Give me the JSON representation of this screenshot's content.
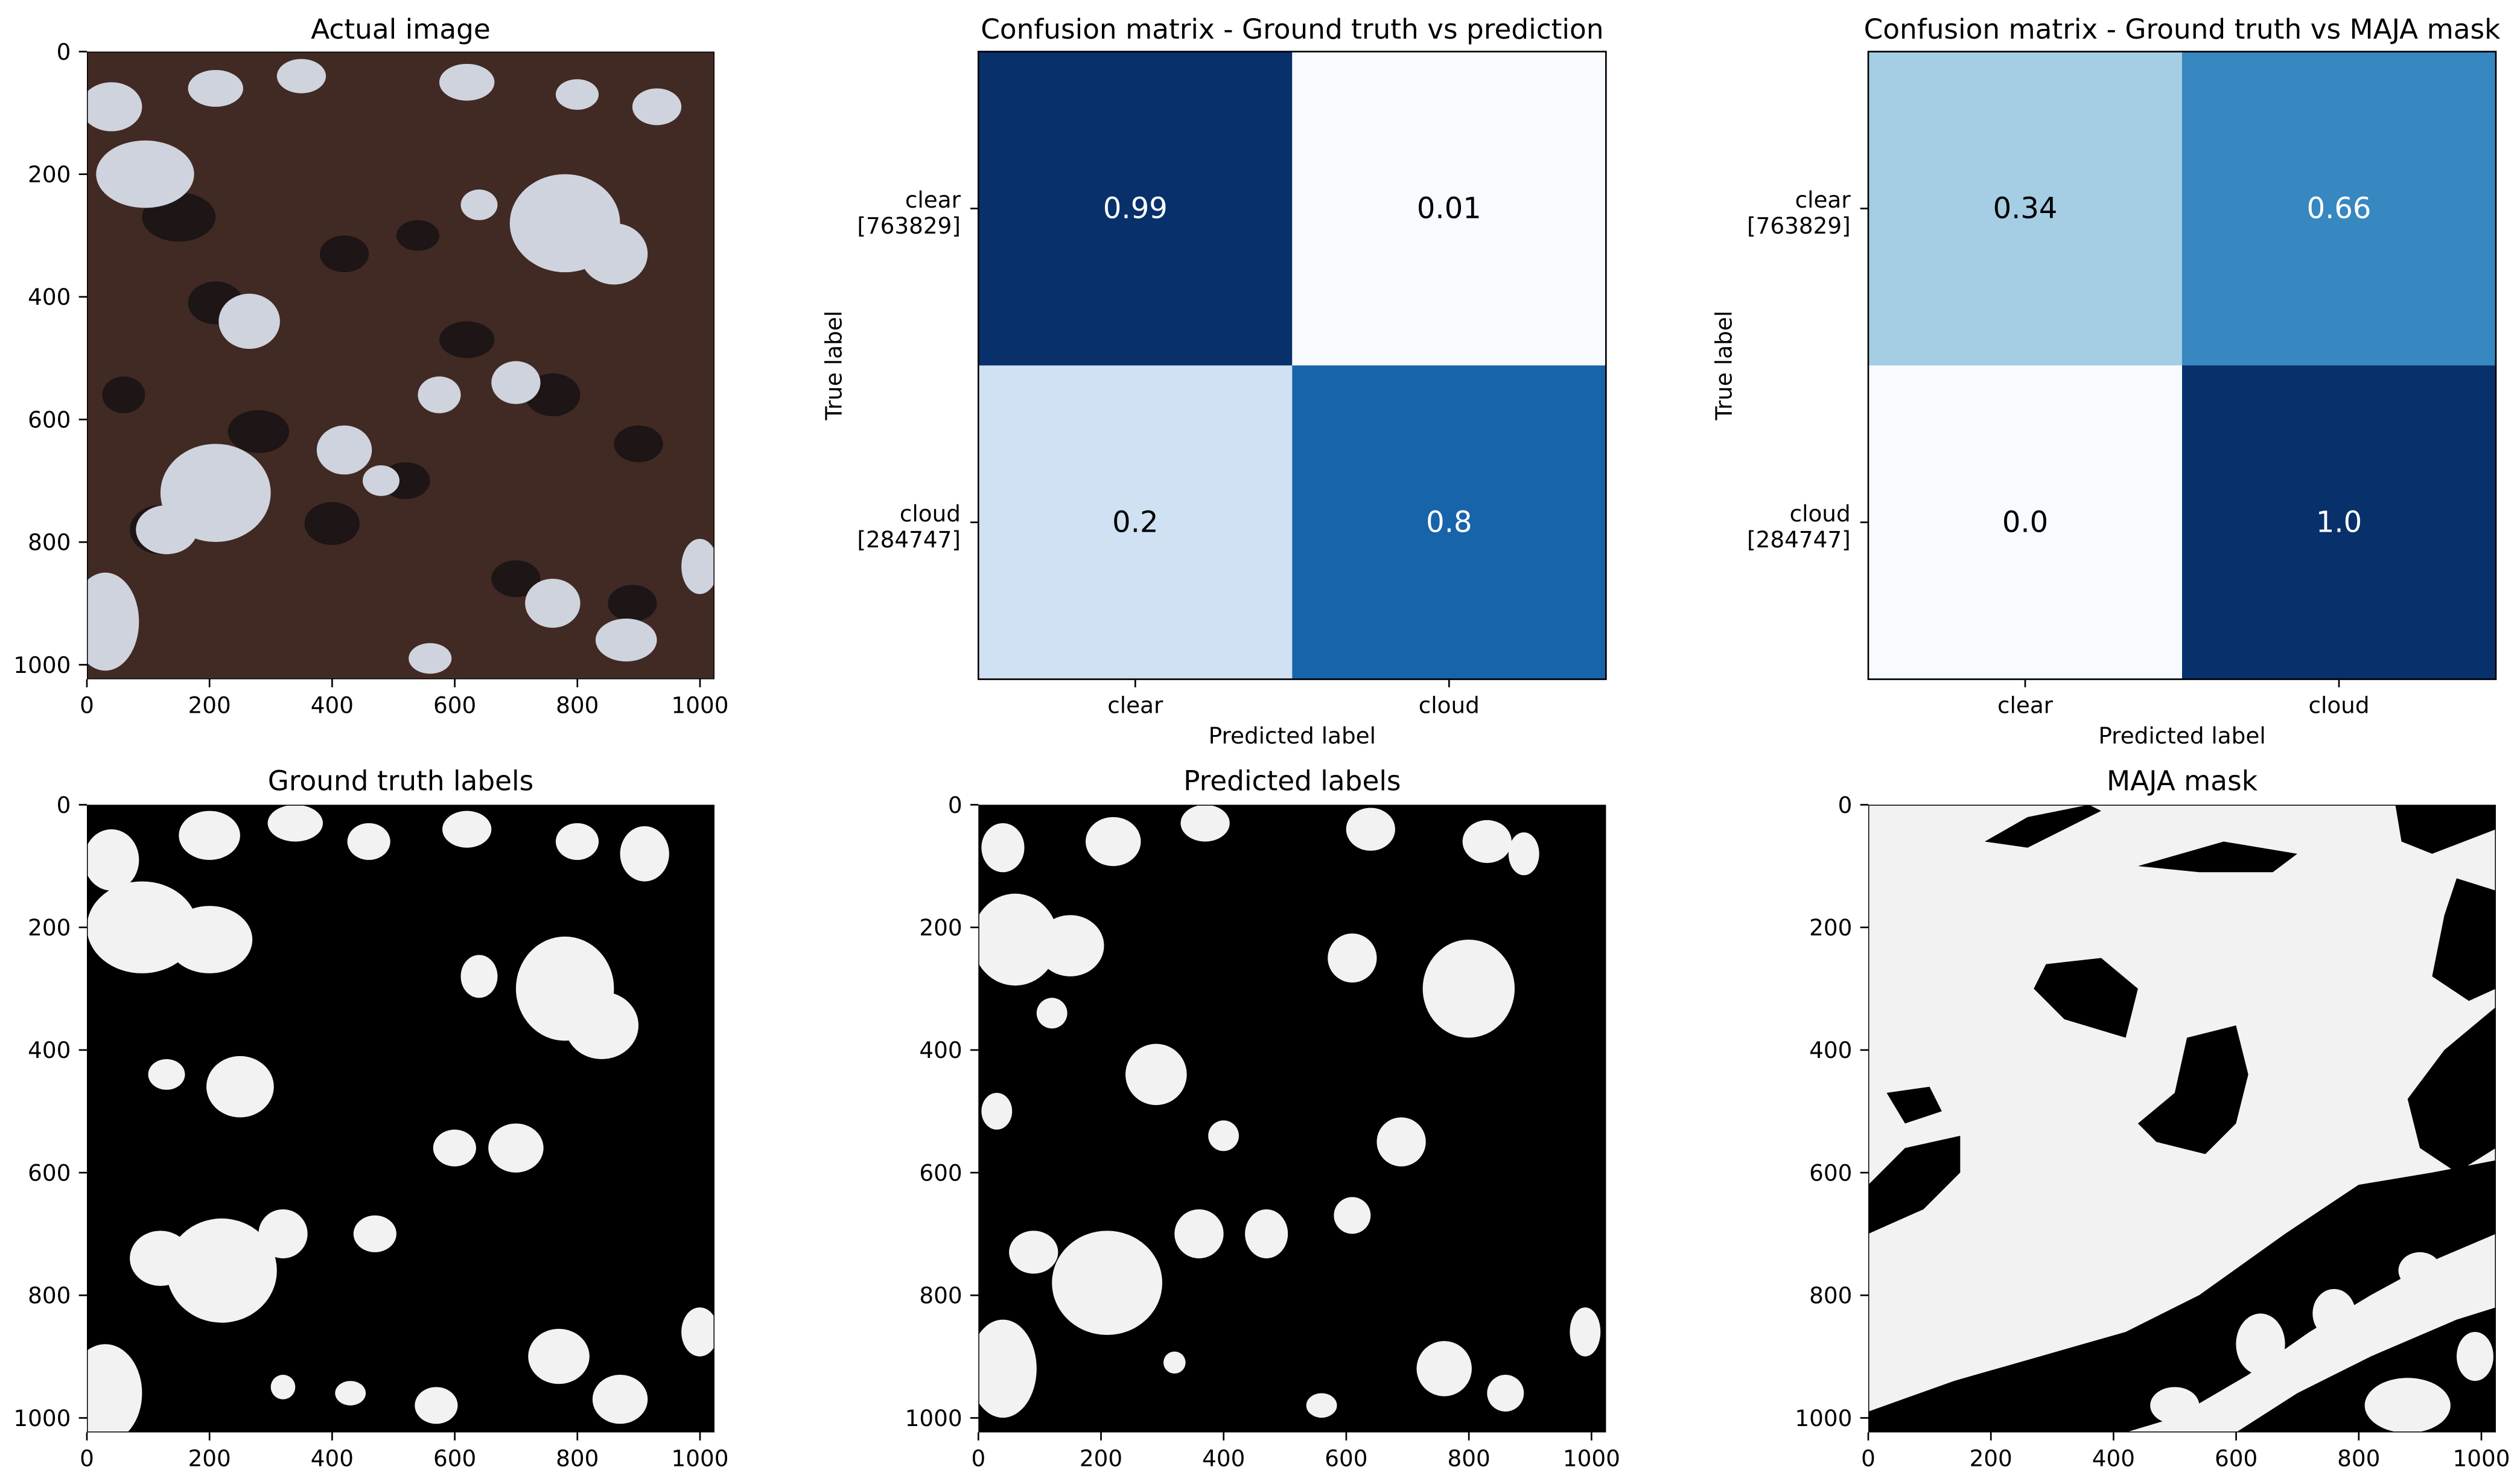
{
  "chart_data": [
    {
      "type": "image",
      "title": "Actual image",
      "x_ticks": [
        "0",
        "200",
        "400",
        "600",
        "800",
        "1000"
      ],
      "y_ticks": [
        "0",
        "200",
        "400",
        "600",
        "800",
        "1000"
      ],
      "xlim": [
        0,
        1024
      ],
      "ylim": [
        1024,
        0
      ],
      "colors": {
        "ground": "#3d2721",
        "cloud": "#cfd3de",
        "shadow": "#171214"
      }
    },
    {
      "type": "heatmap",
      "title": "Confusion matrix - Ground truth vs prediction",
      "xlabel": "Predicted label",
      "ylabel": "True label",
      "x_categories": [
        "clear",
        "cloud"
      ],
      "y_categories": [
        {
          "name": "clear",
          "count": "[763829]"
        },
        {
          "name": "cloud",
          "count": "[284747]"
        }
      ],
      "values": [
        [
          0.99,
          0.01
        ],
        [
          0.2,
          0.8
        ]
      ],
      "cell_labels": [
        [
          "0.99",
          "0.01"
        ],
        [
          "0.2",
          "0.8"
        ]
      ],
      "colormap": "Blues"
    },
    {
      "type": "heatmap",
      "title": "Confusion matrix - Ground truth vs MAJA mask",
      "xlabel": "Predicted label",
      "ylabel": "True label",
      "x_categories": [
        "clear",
        "cloud"
      ],
      "y_categories": [
        {
          "name": "clear",
          "count": "[763829]"
        },
        {
          "name": "cloud",
          "count": "[284747]"
        }
      ],
      "values": [
        [
          0.34,
          0.66
        ],
        [
          0.0,
          1.0
        ]
      ],
      "cell_labels": [
        [
          "0.34",
          "0.66"
        ],
        [
          "0.0",
          "1.0"
        ]
      ],
      "colormap": "Blues"
    },
    {
      "type": "image",
      "title": "Ground truth labels",
      "x_ticks": [
        "0",
        "200",
        "400",
        "600",
        "800",
        "1000"
      ],
      "y_ticks": [
        "0",
        "200",
        "400",
        "600",
        "800",
        "1000"
      ],
      "xlim": [
        0,
        1024
      ],
      "ylim": [
        1024,
        0
      ],
      "colors": {
        "background": "#000000",
        "cloud": "#f2f2f2"
      }
    },
    {
      "type": "image",
      "title": "Predicted labels",
      "x_ticks": [
        "0",
        "200",
        "400",
        "600",
        "800",
        "1000"
      ],
      "y_ticks": [
        "0",
        "200",
        "400",
        "600",
        "800",
        "1000"
      ],
      "xlim": [
        0,
        1024
      ],
      "ylim": [
        1024,
        0
      ],
      "colors": {
        "background": "#000000",
        "cloud": "#f2f2f2"
      }
    },
    {
      "type": "image",
      "title": "MAJA mask",
      "x_ticks": [
        "0",
        "200",
        "400",
        "600",
        "800",
        "1000"
      ],
      "y_ticks": [
        "0",
        "200",
        "400",
        "600",
        "800",
        "1000"
      ],
      "xlim": [
        0,
        1024
      ],
      "ylim": [
        1024,
        0
      ],
      "colors": {
        "background": "#000000",
        "cloud": "#f2f2f2"
      }
    }
  ]
}
